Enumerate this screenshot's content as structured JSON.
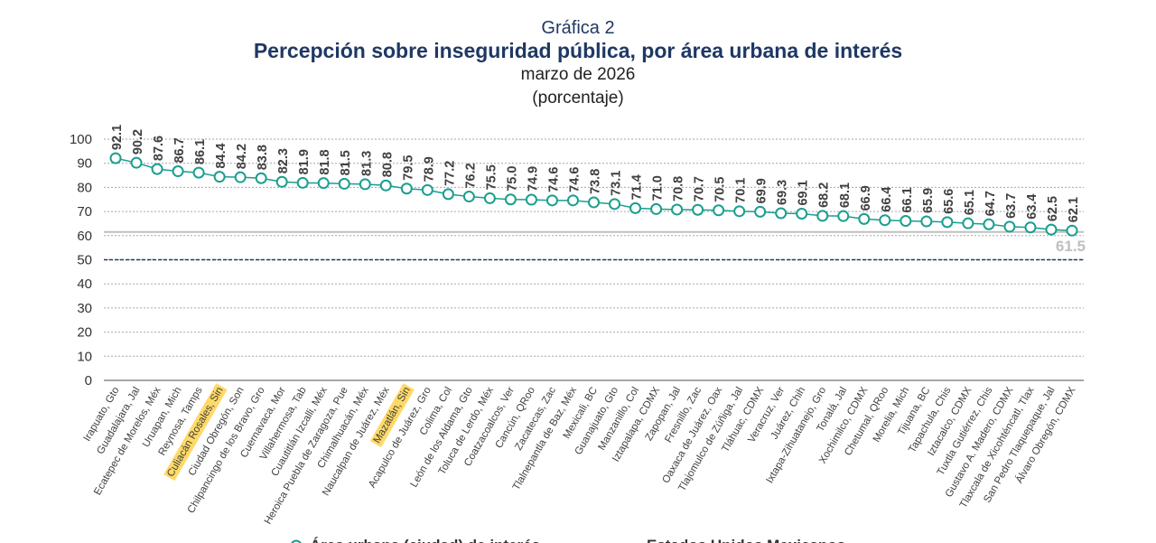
{
  "header": {
    "label": "Gráfica 2",
    "title": "Percepción sobre inseguridad pública, por área urbana de interés",
    "subtitle": "marzo de 2026",
    "unit": "(porcentaje)"
  },
  "chart_data": {
    "type": "line",
    "title": "Percepción sobre inseguridad pública, por área urbana de interés",
    "ylim": [
      0,
      100
    ],
    "yticks": [
      0,
      10,
      20,
      30,
      40,
      50,
      60,
      70,
      80,
      90,
      100
    ],
    "grid": true,
    "legend_position": "bottom",
    "categories": [
      "Irapuato, Gto",
      "Guadalajara, Jal",
      "Ecatepec de Morelos, Méx",
      "Uruapan, Mich",
      "Reynosa, Tamps",
      "Culiacán Rosales, Sin",
      "Ciudad Obregón, Son",
      "Chilpancingo de los Bravo, Gro",
      "Cuernavaca, Mor",
      "Villahermosa, Tab",
      "Cuautitlán Izcalli, Méx",
      "Heroica Puebla de Zaragoza, Pue",
      "Chimalhuacán, Méx",
      "Naucalpan de Juárez, Méx",
      "Mazatlán, Sin",
      "Acapulco de Juárez, Gro",
      "Colima, Col",
      "León de los Aldama, Gto",
      "Toluca de Lerdo, Méx",
      "Coatzacoalcos, Ver",
      "Cancún, QRoo",
      "Zacatecas, Zac",
      "Tlalnepantla de Baz, Méx",
      "Mexicali, BC",
      "Guanajuato, Gto",
      "Manzanillo, Col",
      "Iztapalapa, CDMX",
      "Zapopan, Jal",
      "Fresnillo, Zac",
      "Oaxaca de Juárez, Oax",
      "Tlajomulco de Zúñiga, Jal",
      "Tláhuac, CDMX",
      "Veracruz, Ver",
      "Juárez, Chih",
      "Ixtapa-Zihuatanejo, Gro",
      "Tonalá, Jal",
      "Xochimilco, CDMX",
      "Chetumal, QRoo",
      "Morelia, Mich",
      "Tijuana, BC",
      "Tapachula, Chis",
      "Iztacalco, CDMX",
      "Tuxtla Gutiérrez, Chis",
      "Gustavo A. Madero, CDMX",
      "Tlaxcala de Xicohténcatl, Tlax",
      "San Pedro Tlaquepaque, Jal",
      "Álvaro Obregón, CDMX"
    ],
    "highlighted": [
      "Culiacán Rosales, Sin",
      "Mazatlán, Sin"
    ],
    "series": [
      {
        "name": "Área urbana (ciudad) de interés",
        "color": "#1a9e8f",
        "values": [
          92.1,
          90.2,
          87.6,
          86.7,
          86.1,
          84.4,
          84.2,
          83.8,
          82.3,
          81.9,
          81.8,
          81.5,
          81.3,
          80.8,
          79.5,
          78.9,
          77.2,
          76.2,
          75.5,
          75.0,
          74.9,
          74.6,
          74.6,
          73.8,
          73.1,
          71.4,
          71.0,
          70.8,
          70.7,
          70.5,
          70.1,
          69.9,
          69.3,
          69.1,
          68.2,
          68.1,
          66.9,
          66.4,
          66.1,
          65.9,
          65.6,
          65.1,
          64.7,
          63.7,
          63.4,
          62.5,
          62.1
        ]
      },
      {
        "name": "Estados Unidos Mexicanos",
        "color": "#bfbfbf",
        "value": 61.5,
        "label": "61.5"
      }
    ],
    "reference_line": {
      "value": 50,
      "color": "#1f3864",
      "style": "dashed"
    },
    "highlight_color": "#ffd966"
  }
}
